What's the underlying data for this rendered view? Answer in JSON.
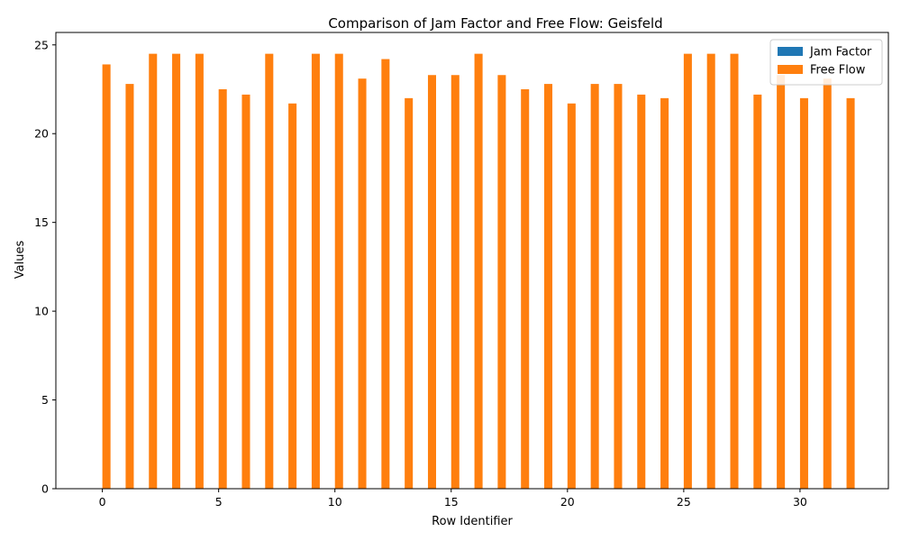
{
  "chart_data": {
    "type": "bar",
    "title": "Comparison of Jam Factor and Free Flow: Geisfeld",
    "xlabel": "Row Identifier",
    "ylabel": "Values",
    "xlim": [
      -2,
      33.8
    ],
    "ylim": [
      0,
      25.7
    ],
    "xticks": [
      0,
      5,
      10,
      15,
      20,
      25,
      30
    ],
    "yticks": [
      0,
      5,
      10,
      15,
      20,
      25
    ],
    "grid": false,
    "legend_position": "upper-right",
    "x": [
      0,
      1,
      2,
      3,
      4,
      5,
      6,
      7,
      8,
      9,
      10,
      11,
      12,
      13,
      14,
      15,
      16,
      17,
      18,
      19,
      20,
      21,
      22,
      23,
      24,
      25,
      26,
      27,
      28,
      29,
      30,
      31,
      32
    ],
    "series": [
      {
        "name": "Jam Factor",
        "color": "#1f77b4",
        "values": [
          0,
          0,
          0,
          0,
          0,
          0,
          0,
          0,
          0,
          0,
          0,
          0,
          0,
          0,
          0,
          0,
          0,
          0,
          0,
          0,
          0,
          0,
          0,
          0,
          0,
          0,
          0,
          0,
          0,
          0,
          0,
          0,
          0
        ]
      },
      {
        "name": "Free Flow",
        "color": "#ff7f0e",
        "values": [
          23.9,
          22.8,
          24.5,
          24.5,
          24.5,
          22.5,
          22.2,
          24.5,
          21.7,
          24.5,
          24.5,
          23.1,
          24.2,
          22.0,
          23.3,
          23.3,
          24.5,
          23.3,
          22.5,
          22.8,
          21.7,
          22.8,
          22.8,
          22.2,
          22.0,
          24.5,
          24.5,
          24.5,
          22.2,
          23.3,
          22.0,
          23.1,
          22.0
        ]
      }
    ]
  }
}
